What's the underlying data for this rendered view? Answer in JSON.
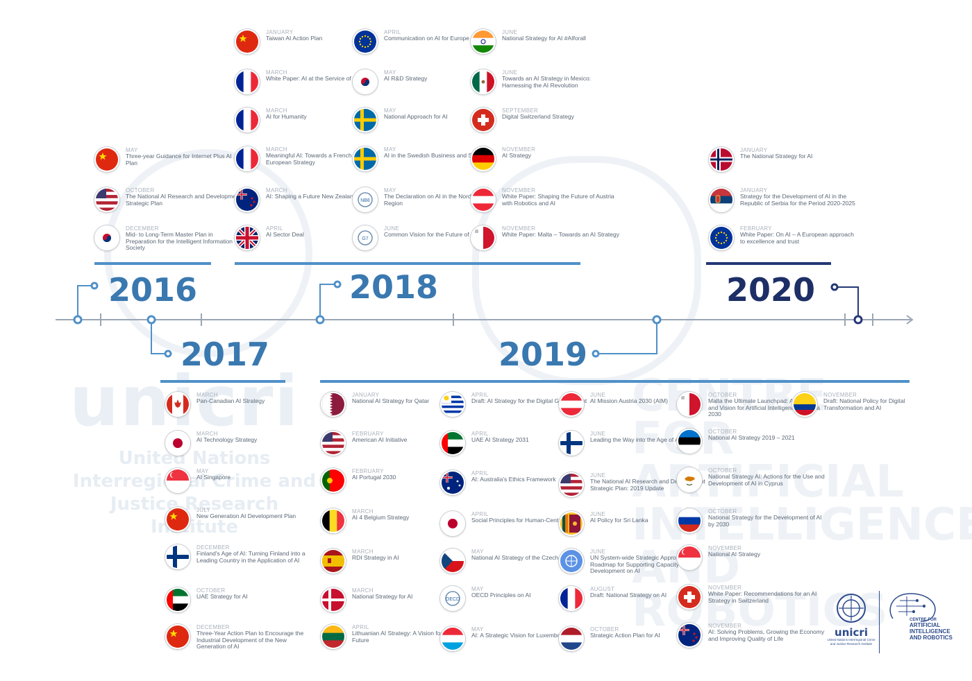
{
  "years": {
    "y2016": "2016",
    "y2017": "2017",
    "y2018": "2018",
    "y2019": "2019",
    "y2020": "2020"
  },
  "watermark": {
    "unicri": "unicri",
    "un": "United Nations Interregional Crime and Justice Research Institute",
    "centre": "CENTRE FOR ARTIFICIAL INTELLIGENCE AND ROBOTICS"
  },
  "logos": {
    "unicri": "unicri",
    "unicri_sub": "United Nations Interregional Crime and Justice Research Institute",
    "centre_top": "CENTRE FOR",
    "centre_main": "ARTIFICIAL INTELLIGENCE AND ROBOTICS"
  },
  "colors": {
    "accent": "#4f90c8",
    "dark": "#233776",
    "year_light": "#3a78b0",
    "year_dark": "#1d2f66",
    "axis": "#9aa6b4"
  },
  "entries": [
    {
      "month": "MAY",
      "title": "Three-year Guidance for Internet Plus AI Plan",
      "flag": "china-flag-icon"
    },
    {
      "month": "OCTOBER",
      "title": "The National AI Research and Development Strategic Plan",
      "flag": "usa-flag-icon"
    },
    {
      "month": "DECEMBER",
      "title": "Mid- to Long-Term Master Plan in Preparation for the Intelligent Information Society",
      "flag": "south-korea-flag-icon"
    },
    {
      "month": "JANUARY",
      "title": "Taiwan AI Action Plan",
      "flag": "china-flag-icon"
    },
    {
      "month": "MARCH",
      "title": "White Paper: AI at the Service of Citizens",
      "flag": "france-flag-icon"
    },
    {
      "month": "MARCH",
      "title": "AI for Humanity",
      "flag": "france-flag-icon"
    },
    {
      "month": "MARCH",
      "title": "Meaningful AI: Towards a French and European Strategy",
      "flag": "france-flag-icon"
    },
    {
      "month": "MARCH",
      "title": "AI: Shaping a Future New Zealand",
      "flag": "new-zealand-flag-icon"
    },
    {
      "month": "APRIL",
      "title": "AI Sector Deal",
      "flag": "uk-flag-icon"
    },
    {
      "month": "APRIL",
      "title": "Communication on AI for Europe",
      "flag": "eu-flag-icon"
    },
    {
      "month": "MAY",
      "title": "AI R&D Strategy",
      "flag": "south-korea-flag-icon"
    },
    {
      "month": "MAY",
      "title": "National Approach for AI",
      "flag": "sweden-flag-icon"
    },
    {
      "month": "MAY",
      "title": "AI in the Swedish Business and Society",
      "flag": "sweden-flag-icon"
    },
    {
      "month": "MAY",
      "title": "The Declaration on AI in the Nordic-Baltic Region",
      "flag": "nordic-seal-icon"
    },
    {
      "month": "JUNE",
      "title": "Common Vision for the Future of AI",
      "flag": "g7-seal-icon"
    },
    {
      "month": "JUNE",
      "title": "National Strategy for AI #AIforall",
      "flag": "india-flag-icon"
    },
    {
      "month": "JUNE",
      "title": "Towards an AI Strategy in Mexico: Harnessing the AI Revolution",
      "flag": "mexico-flag-icon"
    },
    {
      "month": "SEPTEMBER",
      "title": "Digital Switzerland Strategy",
      "flag": "switzerland-flag-icon"
    },
    {
      "month": "NOVEMBER",
      "title": "AI Strategy",
      "flag": "germany-flag-icon"
    },
    {
      "month": "NOVEMBER",
      "title": "White Paper: Shaping the Future of Austria with Robotics and AI",
      "flag": "austria-flag-icon"
    },
    {
      "month": "NOVEMBER",
      "title": "White Paper: Malta – Towards an AI Strategy",
      "flag": "malta-flag-icon"
    },
    {
      "month": "JANUARY",
      "title": "The National Strategy for AI",
      "flag": "norway-flag-icon"
    },
    {
      "month": "JANUARY",
      "title": "Strategy for the Development of AI in the Republic of Serbia for the Period 2020-2025",
      "flag": "serbia-flag-icon"
    },
    {
      "month": "FEBRUARY",
      "title": "White Paper: On AI – A European approach to excellence and trust",
      "flag": "eu-flag-icon"
    },
    {
      "month": "MARCH",
      "title": "Pan-Canadian AI Strategy",
      "flag": "canada-flag-icon"
    },
    {
      "month": "MARCH",
      "title": "AI Technology Strategy",
      "flag": "japan-flag-icon"
    },
    {
      "month": "MAY",
      "title": "AI Singapore",
      "flag": "singapore-flag-icon"
    },
    {
      "month": "JULY",
      "title": "New Generation AI Development Plan",
      "flag": "china-flag-icon"
    },
    {
      "month": "DECEMBER",
      "title": "Finland's Age of AI: Turning Finland into a Leading Country in the Application of AI",
      "flag": "finland-flag-icon"
    },
    {
      "month": "OCTOBER",
      "title": "UAE Strategy for AI",
      "flag": "uae-flag-icon"
    },
    {
      "month": "DECEMBER",
      "title": "Three-Year Action Plan to Encourage the Industrial Development of the New Generation of AI",
      "flag": "china-flag-icon"
    },
    {
      "month": "JANUARY",
      "title": "National AI Strategy for Qatar",
      "flag": "qatar-flag-icon"
    },
    {
      "month": "FEBRUARY",
      "title": "American AI Initiative",
      "flag": "usa-flag-icon"
    },
    {
      "month": "FEBRUARY",
      "title": "AI Portugal 2030",
      "flag": "portugal-flag-icon"
    },
    {
      "month": "MARCH",
      "title": "AI 4 Belgium Strategy",
      "flag": "belgium-flag-icon"
    },
    {
      "month": "MARCH",
      "title": "RDI Strategy in AI",
      "flag": "spain-flag-icon"
    },
    {
      "month": "MARCH",
      "title": "National Strategy for AI",
      "flag": "denmark-flag-icon"
    },
    {
      "month": "APRIL",
      "title": "Lithuanian AI Strategy: A Vision for the Future",
      "flag": "lithuania-flag-icon"
    },
    {
      "month": "APRIL",
      "title": "Draft: AI Strategy for the Digital Government",
      "flag": "uruguay-flag-icon"
    },
    {
      "month": "APRIL",
      "title": "UAE AI Strategy 2031",
      "flag": "uae-flag-icon"
    },
    {
      "month": "APRIL",
      "title": "AI: Australia's Ethics Framework",
      "flag": "australia-flag-icon"
    },
    {
      "month": "APRIL",
      "title": "Social Principles for Human-Centric AI",
      "flag": "japan-flag-icon"
    },
    {
      "month": "MAY",
      "title": "National AI Strategy of the Czech Republic",
      "flag": "czech-flag-icon"
    },
    {
      "month": "MAY",
      "title": "OECD Principles on AI",
      "flag": "oecd-seal-icon"
    },
    {
      "month": "MAY",
      "title": "AI: A Strategic Vision for Luxembourg",
      "flag": "luxembourg-flag-icon"
    },
    {
      "month": "JUNE",
      "title": "AI Mission Austria 2030 (AIM)",
      "flag": "austria-flag-icon"
    },
    {
      "month": "JUNE",
      "title": "Leading the Way into the Age of AI",
      "flag": "finland-flag-icon"
    },
    {
      "month": "JUNE",
      "title": "The National AI Research and Development Strategic Plan: 2019 Update",
      "flag": "usa-flag-icon"
    },
    {
      "month": "JUNE",
      "title": "AI Policy for Sri Lanka",
      "flag": "sri-lanka-flag-icon"
    },
    {
      "month": "JUNE",
      "title": "UN System-wide Strategic Approach and Roadmap for Supporting Capacity Development on AI",
      "flag": "un-seal-icon"
    },
    {
      "month": "AUGUST",
      "title": "Draft: National Strategy on AI",
      "flag": "france-flag-icon"
    },
    {
      "month": "OCTOBER",
      "title": "Strategic Action Plan for AI",
      "flag": "netherlands-flag-icon"
    },
    {
      "month": "OCTOBER",
      "title": "Malta the Ultimate Launchpad: A Strategy and Vision for Artificial Intelligence in Malta 2030",
      "flag": "malta-flag-icon"
    },
    {
      "month": "OCTOBER",
      "title": "National AI Strategy 2019 – 2021",
      "flag": "estonia-flag-icon"
    },
    {
      "month": "OCTOBER",
      "title": "National Strategy AI: Actions for the Use and Development of AI in Cyprus",
      "flag": "cyprus-flag-icon"
    },
    {
      "month": "OCTOBER",
      "title": "National Strategy for the Development of AI by 2030",
      "flag": "russia-flag-icon"
    },
    {
      "month": "NOVEMBER",
      "title": "National AI Strategy",
      "flag": "singapore-flag-icon"
    },
    {
      "month": "NOVEMBER",
      "title": "White Paper: Recommendations for an AI Strategy in Switzerland",
      "flag": "switzerland-flag-icon"
    },
    {
      "month": "NOVEMBER",
      "title": "AI: Solving Problems, Growing the Economy and Improving Quality of Life",
      "flag": "new-zealand-flag-icon"
    },
    {
      "month": "NOVEMBER",
      "title": "Draft: National Policy for Digital Transformation and AI",
      "flag": "colombia-flag-icon"
    }
  ]
}
